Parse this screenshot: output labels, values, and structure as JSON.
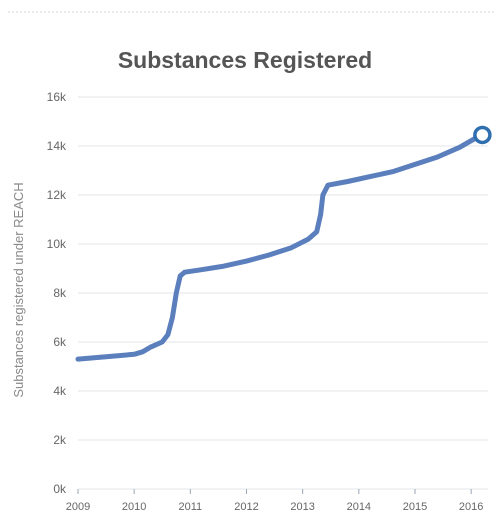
{
  "chart_data": {
    "type": "line",
    "title": "Substances Registered",
    "ylabel": "Substances registered under REACH",
    "xlabel": "",
    "x_ticks": [
      "2009",
      "2010",
      "2011",
      "2012",
      "2013",
      "2014",
      "2015",
      "2016"
    ],
    "y_ticks": [
      "0k",
      "2k",
      "4k",
      "6k",
      "8k",
      "10k",
      "12k",
      "14k",
      "16k"
    ],
    "xlim": [
      2009,
      2016.3
    ],
    "ylim": [
      0,
      16000
    ],
    "grid": true,
    "colors": {
      "line": "#5b7fbd",
      "marker": "#2f6fb0",
      "grid": "#e3e6ea",
      "text": "#666666",
      "title": "#555555"
    },
    "series": [
      {
        "values": [
          [
            2009.0,
            5300
          ],
          [
            2009.5,
            5400
          ],
          [
            2010.0,
            5500
          ],
          [
            2010.15,
            5600
          ],
          [
            2010.3,
            5800
          ],
          [
            2010.5,
            6000
          ],
          [
            2010.6,
            6300
          ],
          [
            2010.68,
            7000
          ],
          [
            2010.75,
            8000
          ],
          [
            2010.82,
            8700
          ],
          [
            2010.9,
            8850
          ],
          [
            2011.2,
            8950
          ],
          [
            2011.6,
            9100
          ],
          [
            2012.0,
            9300
          ],
          [
            2012.4,
            9550
          ],
          [
            2012.8,
            9850
          ],
          [
            2013.1,
            10200
          ],
          [
            2013.25,
            10500
          ],
          [
            2013.32,
            11200
          ],
          [
            2013.36,
            12000
          ],
          [
            2013.45,
            12400
          ],
          [
            2013.8,
            12550
          ],
          [
            2014.2,
            12750
          ],
          [
            2014.6,
            12950
          ],
          [
            2015.0,
            13250
          ],
          [
            2015.4,
            13550
          ],
          [
            2015.8,
            13950
          ],
          [
            2016.1,
            14350
          ],
          [
            2016.2,
            14450
          ]
        ],
        "end_marker": true
      }
    ]
  }
}
